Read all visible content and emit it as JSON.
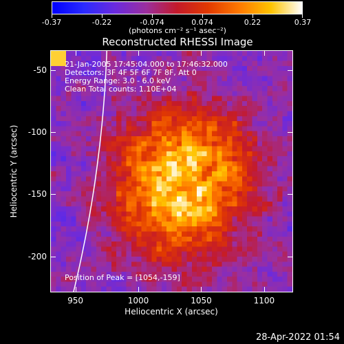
{
  "colorbar": {
    "ticks": [
      "-0.37",
      "-0.22",
      "-0.074",
      "0.074",
      "0.22",
      "0.37"
    ],
    "unit": "(photons cm⁻² s⁻¹ asec⁻²)",
    "gradient_colors": [
      "#0000ff",
      "#2a2aff",
      "#6a2adf",
      "#9b2f9f",
      "#c41a2a",
      "#e23a00",
      "#ff7a00",
      "#ffc400",
      "#ffffff"
    ]
  },
  "chart_data": {
    "type": "heatmap",
    "title": "Reconstructed RHESSI Image",
    "xlabel": "Heliocentric X (arcsec)",
    "ylabel": "Heliocentric Y (arcsec)",
    "xlim": [
      930,
      1123
    ],
    "ylim": [
      -229,
      -34
    ],
    "xticks": [
      "950",
      "1000",
      "1050",
      "1100"
    ],
    "yticks": [
      "-50",
      "-100",
      "-150",
      "-200"
    ],
    "colorbar_range": [
      -0.37,
      0.37
    ],
    "peak_position": [
      1054,
      -159
    ],
    "annotations": {
      "time": "21-Jan-2005 17:45:04.000 to 17:46:32.000",
      "detectors": "Detectors: 3F 4F 5F 6F 7F 8F, Att 0",
      "energy": "Energy Range: 3.0 - 6.0 keV",
      "method": "Clean     Total counts: 1.10E+04",
      "peak": "Position of Peak = [1054,-159]"
    }
  },
  "footer": {
    "date": "28-Apr-2022 01:54"
  }
}
